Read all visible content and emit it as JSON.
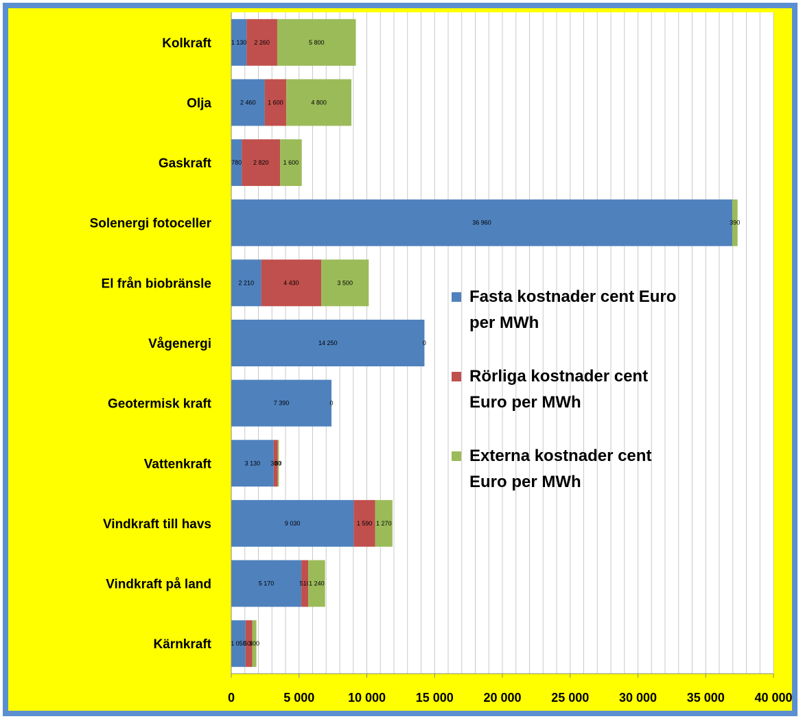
{
  "chart_data": {
    "type": "bar",
    "orientation": "horizontal",
    "stacked": true,
    "categories": [
      "Kolkraft",
      "Olja",
      "Gaskraft",
      "Solenergi fotoceller",
      "El från biobränsle",
      "Vågenergi",
      "Geotermisk kraft",
      "Vattenkraft",
      "Vindkraft till havs",
      "Vindkraft på land",
      "Kärnkraft"
    ],
    "series": [
      {
        "name_lines": [
          "Fasta kostnader cent Euro",
          "per MWh"
        ],
        "color": "#4f81bd",
        "values": [
          1130,
          2460,
          780,
          36960,
          2210,
          14250,
          7390,
          3130,
          9030,
          5170,
          1050
        ],
        "labels": [
          "1 130",
          "2 460",
          "780",
          "36 960",
          "2 210",
          "14 250",
          "7 390",
          "3 130",
          "9 030",
          "5 170",
          "1 050"
        ]
      },
      {
        "name_lines": [
          "Rörliga kostnader cent",
          "Euro per MWh"
        ],
        "color": "#c0504d",
        "values": [
          2260,
          1600,
          2820,
          0,
          4430,
          0,
          0,
          300,
          1590,
          510,
          500
        ],
        "labels": [
          "2 260",
          "1 600",
          "2 820",
          "",
          "4 430",
          "",
          "",
          "300",
          "1 590",
          "510",
          "500"
        ]
      },
      {
        "name_lines": [
          "Externa kostnader cent",
          "Euro per MWh"
        ],
        "color": "#9bbb59",
        "values": [
          5800,
          4800,
          1600,
          390,
          3500,
          0,
          0,
          80,
          1270,
          1240,
          300
        ],
        "labels": [
          "5 800",
          "4 800",
          "1 600",
          "390",
          "3 500",
          "0",
          "0",
          "80",
          "1 270",
          "1 240",
          "300"
        ]
      }
    ],
    "xlim": [
      0,
      40000
    ],
    "xticks": [
      0,
      5000,
      10000,
      15000,
      20000,
      25000,
      30000,
      35000,
      40000
    ],
    "xtick_labels": [
      "0",
      "5 000",
      "10 000",
      "15 000",
      "20 000",
      "25 000",
      "30 000",
      "35 000",
      "40 000"
    ],
    "grid": "vertical",
    "legend_position": "right",
    "colors": {
      "frame": "#5b8fd0",
      "background": "#ffff00",
      "plot_background": "#ffffff",
      "gridline": "#c8c8c8"
    }
  }
}
